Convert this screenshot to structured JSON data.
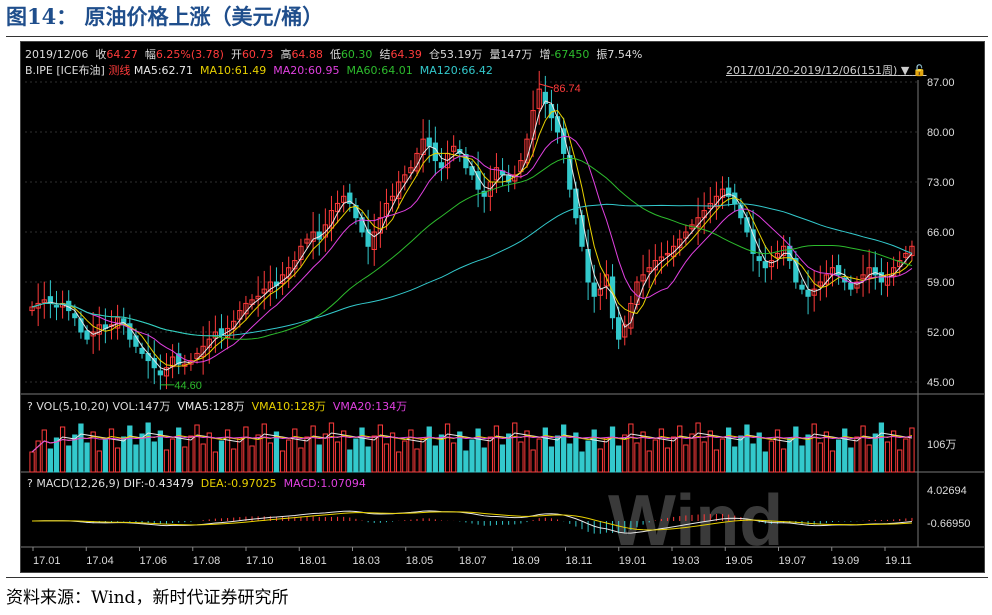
{
  "figure_title": "图14：  原油价格上涨（美元/桶）",
  "source": "资料来源：Wind，新时代证券研究所",
  "header": {
    "date": "2019/12/06",
    "close_label": "收",
    "close": "64.27",
    "change_label": "幅",
    "change": "6.25%(3.78)",
    "open_label": "开",
    "open": "60.73",
    "high_label": "高",
    "high": "64.88",
    "low_label": "低",
    "low": "60.30",
    "settle_label": "结",
    "settle": "64.39",
    "oi_label": "仓",
    "oi": "53.19万",
    "vol_label": "量",
    "vol": "147万",
    "inc_label": "增",
    "inc": "-67450",
    "amp_label": "振",
    "amp": "7.54%"
  },
  "ma_line": {
    "code": "B.IPE [ICE布油]",
    "mode": "测线",
    "ma5": "MA5:62.71",
    "ma10": "MA10:61.49",
    "ma20": "MA20:60.95",
    "ma60": "MA60:64.01",
    "ma120": "MA120:66.42",
    "range": "2017/01/20-2019/12/06(151周)"
  },
  "vol_panel": {
    "label": "VOL(5,10,20)",
    "vol": "VOL:147万",
    "vma5": "VMA5:128万",
    "vma10": "VMA10:128万",
    "vma20": "VMA20:134万",
    "tick": "106万"
  },
  "macd_panel": {
    "label": "MACD(12,26,9)",
    "dif": "DIF:-0.43479",
    "dea": "DEA:-0.97025",
    "macd": "MACD:1.07094",
    "tick_high": "4.02694",
    "tick_low": "-0.66950"
  },
  "watermark": "Wind",
  "colors": {
    "up": "#ff3b3b",
    "down": "#33c9cc",
    "ma5": "#e8e8e8",
    "ma10": "#e8d100",
    "ma20": "#e040e0",
    "ma60": "#2dbb2d",
    "ma120": "#33c9cc",
    "title": "#1f4e8c"
  },
  "chart_data": {
    "type": "candlestick",
    "title": "原油价格上涨（美元/桶）",
    "unit": "美元/桶",
    "y_ticks": [
      "87.00",
      "80.00",
      "73.00",
      "66.00",
      "59.00",
      "52.00",
      "45.00"
    ],
    "ylim": [
      45,
      87
    ],
    "x_ticks": [
      "17.01",
      "17.04",
      "17.06",
      "17.08",
      "17.10",
      "18.01",
      "18.03",
      "18.05",
      "18.07",
      "18.09",
      "18.11",
      "19.01",
      "19.03",
      "19.05",
      "19.07",
      "19.09",
      "19.11"
    ],
    "annotations": [
      {
        "label": "86.74",
        "value": 86.74
      },
      {
        "label": "44.60",
        "value": 44.6
      }
    ],
    "weekly_close": [
      55.5,
      56,
      56.5,
      56,
      55.5,
      56,
      55,
      54,
      52,
      51,
      52,
      53,
      52.5,
      53,
      54,
      53,
      51,
      50,
      49,
      48,
      47,
      46,
      47,
      48.5,
      47.5,
      47.5,
      48,
      49,
      50,
      51,
      52,
      51.5,
      52.5,
      53.5,
      55,
      56,
      56.5,
      57,
      58,
      59,
      58.5,
      60,
      61,
      62,
      64,
      65,
      66,
      65,
      67,
      69,
      70,
      71,
      70,
      68,
      66,
      64,
      66,
      68,
      70,
      71,
      73,
      74,
      75,
      77,
      79,
      78,
      76,
      75,
      77,
      78,
      77,
      75,
      74,
      72,
      71,
      73,
      75,
      74,
      73,
      74,
      76,
      79,
      83,
      86,
      84,
      82,
      80,
      77,
      72,
      68,
      64,
      59,
      57,
      58,
      60,
      54,
      51,
      53,
      56,
      59,
      60,
      61,
      62,
      62.5,
      63,
      64,
      65,
      66,
      67,
      68,
      69,
      70,
      71,
      72,
      71,
      70,
      68,
      66,
      63,
      62,
      61,
      62,
      63,
      64,
      62,
      59,
      58,
      57,
      58,
      59,
      60,
      61,
      60,
      59,
      58,
      59,
      60,
      61,
      60,
      59,
      60,
      61,
      62,
      63,
      64
    ],
    "ma_values": {
      "MA5": 62.71,
      "MA10": 61.49,
      "MA20": 60.95,
      "MA60": 64.01,
      "MA120": 66.42
    },
    "volume": {
      "last": "147万",
      "tick": "106万"
    },
    "macd": {
      "DIF": -0.43479,
      "DEA": -0.97025,
      "MACD": 1.07094
    }
  }
}
